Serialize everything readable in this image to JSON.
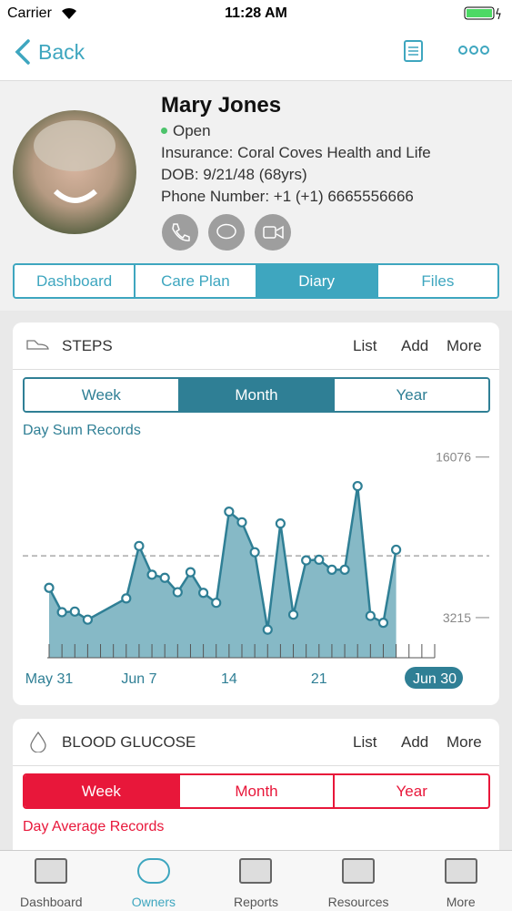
{
  "status_bar": {
    "carrier": "Carrier",
    "time": "11:28 AM"
  },
  "nav": {
    "back": "Back"
  },
  "profile": {
    "name": "Mary Jones",
    "status": "Open",
    "insurance": "Insurance: Coral Coves Health and Life",
    "dob": "DOB: 9/21/48 (68yrs)",
    "phone": "Phone Number: +1 (+1) 6665556666"
  },
  "tabs": {
    "items": [
      "Dashboard",
      "Care Plan",
      "Diary",
      "Files"
    ],
    "active": 2
  },
  "steps_card": {
    "title": "STEPS",
    "actions": [
      "List",
      "Add",
      "More"
    ],
    "ranges": [
      "Week",
      "Month",
      "Year"
    ],
    "active_range": 1
  },
  "chart_data": {
    "type": "area",
    "title": "Day Sum Records",
    "x": [
      0,
      1,
      2,
      3,
      6,
      7,
      8,
      9,
      10,
      11,
      12,
      13,
      14,
      15,
      16,
      17,
      18,
      19,
      20,
      21,
      22,
      23,
      24,
      25,
      26,
      27
    ],
    "values": [
      5600,
      3650,
      3700,
      3050,
      4750,
      8950,
      6650,
      6400,
      5250,
      6850,
      5200,
      4400,
      11700,
      10850,
      8450,
      2250,
      10750,
      3450,
      7800,
      7850,
      7050,
      7050,
      13750,
      3350,
      2800,
      8650
    ],
    "xlim": [
      0,
      30
    ],
    "xticks": [
      {
        "value": 0,
        "label": "May 31"
      },
      {
        "value": 7,
        "label": "Jun 7"
      },
      14,
      21,
      {
        "value": 30,
        "label": "Jun 30"
      }
    ],
    "ylim": [
      0,
      17000
    ],
    "yticks": [
      3215,
      16076
    ],
    "reference_line": 8160,
    "color": "#2f7f95",
    "fill_color": "#86b9c6"
  },
  "glucose_card": {
    "title": "BLOOD GLUCOSE",
    "actions": [
      "List",
      "Add",
      "More"
    ],
    "ranges": [
      "Week",
      "Month",
      "Year"
    ],
    "active_range": 0,
    "subtitle": "Day Average Records"
  },
  "tab_bar": {
    "items": [
      "Dashboard",
      "Owners",
      "Reports",
      "Resources",
      "More"
    ],
    "active": 1
  }
}
